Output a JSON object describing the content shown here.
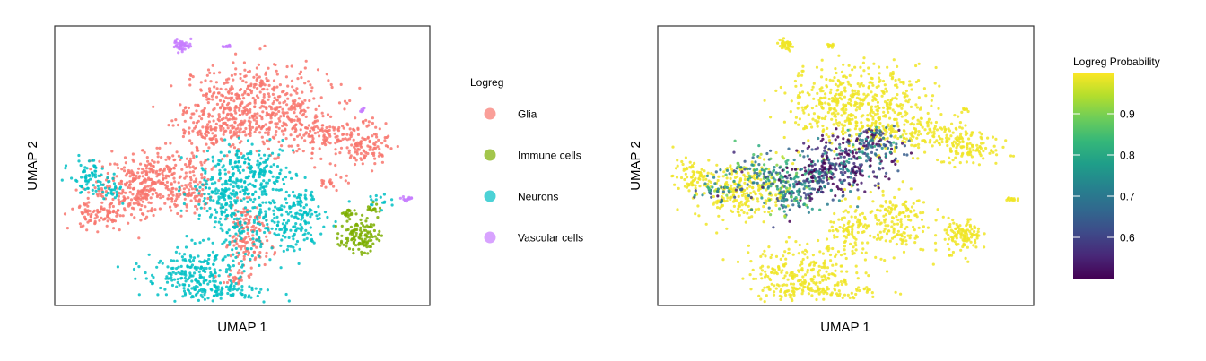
{
  "chart_data": [
    {
      "type": "scatter",
      "xlabel": "UMAP 1",
      "ylabel": "UMAP 2",
      "xlim": [
        0,
        100
      ],
      "ylim": [
        0,
        100
      ],
      "grid": false,
      "axis_ticks": false,
      "legend": {
        "title": "Logreg",
        "placement": "right",
        "entries": [
          {
            "label": "Glia",
            "color": "#F8766D"
          },
          {
            "label": "Immune cells",
            "color": "#7CAE00"
          },
          {
            "label": "Neurons",
            "color": "#00BFC4"
          },
          {
            "label": "Vascular cells",
            "color": "#C77CFF"
          }
        ]
      },
      "clusters": [
        {
          "category": "Glia",
          "cx": 49,
          "cy": 72,
          "sx": 7,
          "sy": 7,
          "n": 260
        },
        {
          "category": "Glia",
          "cx": 58,
          "cy": 71,
          "sx": 8,
          "sy": 7,
          "n": 240
        },
        {
          "category": "Glia",
          "cx": 42,
          "cy": 63,
          "sx": 5,
          "sy": 4,
          "n": 120
        },
        {
          "category": "Glia",
          "cx": 72,
          "cy": 61,
          "sx": 8,
          "sy": 3.5,
          "n": 170
        },
        {
          "category": "Glia",
          "cx": 83,
          "cy": 56,
          "sx": 4,
          "sy": 3,
          "n": 80
        },
        {
          "category": "Glia",
          "cx": 22,
          "cy": 41,
          "sx": 6,
          "sy": 5,
          "n": 230
        },
        {
          "category": "Glia",
          "cx": 30,
          "cy": 48,
          "sx": 6,
          "sy": 4,
          "n": 160
        },
        {
          "category": "Glia",
          "cx": 36,
          "cy": 39,
          "sx": 3.5,
          "sy": 3,
          "n": 70
        },
        {
          "category": "Glia",
          "cx": 12,
          "cy": 32,
          "sx": 4,
          "sy": 2.5,
          "n": 90
        },
        {
          "category": "Glia",
          "cx": 51,
          "cy": 29,
          "sx": 3,
          "sy": 4,
          "n": 90
        },
        {
          "category": "Glia",
          "cx": 52,
          "cy": 20,
          "sx": 3,
          "sy": 3,
          "n": 50
        },
        {
          "category": "Glia",
          "cx": 49,
          "cy": 10,
          "sx": 2,
          "sy": 1.5,
          "n": 25
        },
        {
          "category": "Glia",
          "cx": 74,
          "cy": 45,
          "sx": 2,
          "sy": 2,
          "n": 20
        },
        {
          "category": "Neurons",
          "cx": 52,
          "cy": 47,
          "sx": 6,
          "sy": 5,
          "n": 230
        },
        {
          "category": "Neurons",
          "cx": 44,
          "cy": 39,
          "sx": 4,
          "sy": 4,
          "n": 110
        },
        {
          "category": "Neurons",
          "cx": 62,
          "cy": 30,
          "sx": 5,
          "sy": 6,
          "n": 180
        },
        {
          "category": "Neurons",
          "cx": 49,
          "cy": 28,
          "sx": 3,
          "sy": 4,
          "n": 60
        },
        {
          "category": "Neurons",
          "cx": 38,
          "cy": 12,
          "sx": 7,
          "sy": 5,
          "n": 230
        },
        {
          "category": "Neurons",
          "cx": 44,
          "cy": 5,
          "sx": 8,
          "sy": 1.5,
          "n": 80
        },
        {
          "category": "Neurons",
          "cx": 9,
          "cy": 46,
          "sx": 2.5,
          "sy": 3,
          "n": 70
        },
        {
          "category": "Neurons",
          "cx": 15,
          "cy": 41,
          "sx": 2,
          "sy": 2,
          "n": 25
        },
        {
          "category": "Neurons",
          "cx": 66,
          "cy": 36,
          "sx": 2,
          "sy": 2,
          "n": 25
        },
        {
          "category": "Neurons",
          "cx": 87,
          "cy": 37,
          "sx": 1.5,
          "sy": 1.5,
          "n": 15
        },
        {
          "category": "Immune cells",
          "cx": 81,
          "cy": 25,
          "sx": 2.5,
          "sy": 3,
          "n": 120
        },
        {
          "category": "Immune cells",
          "cx": 78.5,
          "cy": 33,
          "sx": 0.8,
          "sy": 1.2,
          "n": 20
        },
        {
          "category": "Immune cells",
          "cx": 85,
          "cy": 35,
          "sx": 1,
          "sy": 1,
          "n": 15
        },
        {
          "category": "Vascular cells",
          "cx": 34,
          "cy": 93,
          "sx": 1.2,
          "sy": 1,
          "n": 45
        },
        {
          "category": "Vascular cells",
          "cx": 46,
          "cy": 93,
          "sx": 0.5,
          "sy": 0.4,
          "n": 10
        },
        {
          "category": "Vascular cells",
          "cx": 82,
          "cy": 70,
          "sx": 0.4,
          "sy": 0.4,
          "n": 8
        },
        {
          "category": "Vascular cells",
          "cx": 94,
          "cy": 38,
          "sx": 0.8,
          "sy": 0.6,
          "n": 15
        }
      ]
    },
    {
      "type": "scatter",
      "xlabel": "UMAP 1",
      "ylabel": "UMAP 2",
      "xlim": [
        0,
        100
      ],
      "ylim": [
        0,
        100
      ],
      "grid": false,
      "axis_ticks": false,
      "colorbar": {
        "title": "Logreg Probability",
        "placement": "right",
        "range": [
          0.5,
          1.0
        ],
        "ticks": [
          0.6,
          0.7,
          0.8,
          0.9
        ],
        "tick_labels": [
          "0.6",
          "0.7",
          "0.8",
          "0.9"
        ],
        "colormap": "viridis",
        "stops": [
          "#440154",
          "#482878",
          "#3E4A89",
          "#31688E",
          "#26828E",
          "#1F9E89",
          "#35B779",
          "#6DCD59",
          "#B4DE2C",
          "#FDE725"
        ]
      },
      "clusters": [
        {
          "prob": 0.99,
          "cx": 49,
          "cy": 72,
          "sx": 7,
          "sy": 7,
          "n": 260
        },
        {
          "prob": 0.99,
          "cx": 58,
          "cy": 71,
          "sx": 8,
          "sy": 7,
          "n": 240
        },
        {
          "prob": 0.99,
          "cx": 72,
          "cy": 61,
          "sx": 8,
          "sy": 3.5,
          "n": 170
        },
        {
          "prob": 0.99,
          "cx": 83,
          "cy": 56,
          "sx": 4,
          "sy": 3,
          "n": 80
        },
        {
          "prob": 0.99,
          "cx": 22,
          "cy": 41,
          "sx": 6,
          "sy": 5,
          "n": 230
        },
        {
          "prob": 0.99,
          "cx": 9,
          "cy": 46,
          "sx": 2.5,
          "sy": 3,
          "n": 70
        },
        {
          "prob": 0.99,
          "cx": 62,
          "cy": 30,
          "sx": 5,
          "sy": 6,
          "n": 180
        },
        {
          "prob": 0.99,
          "cx": 38,
          "cy": 12,
          "sx": 7,
          "sy": 5,
          "n": 230
        },
        {
          "prob": 0.99,
          "cx": 44,
          "cy": 5,
          "sx": 8,
          "sy": 1.5,
          "n": 80
        },
        {
          "prob": 0.99,
          "cx": 81,
          "cy": 25,
          "sx": 2.5,
          "sy": 3,
          "n": 120
        },
        {
          "prob": 0.99,
          "cx": 51,
          "cy": 25,
          "sx": 3,
          "sy": 5,
          "n": 90
        },
        {
          "prob": 0.99,
          "cx": 34,
          "cy": 93,
          "sx": 1.2,
          "sy": 1,
          "n": 40
        },
        {
          "prob": 0.99,
          "cx": 94,
          "cy": 38,
          "sx": 0.8,
          "sy": 0.6,
          "n": 15
        },
        {
          "prob": 0.99,
          "cx": 82,
          "cy": 70,
          "sx": 0.4,
          "sy": 0.4,
          "n": 8
        },
        {
          "prob": 0.99,
          "cx": 46,
          "cy": 93,
          "sx": 0.5,
          "sy": 0.4,
          "n": 10
        },
        {
          "prob": 0.78,
          "cx": 30,
          "cy": 47,
          "sx": 6,
          "sy": 4,
          "n": 170
        },
        {
          "prob": 0.72,
          "cx": 36,
          "cy": 39,
          "sx": 4,
          "sy": 4,
          "n": 110
        },
        {
          "prob": 0.58,
          "cx": 44,
          "cy": 46,
          "sx": 4,
          "sy": 4,
          "n": 130
        },
        {
          "prob": 0.56,
          "cx": 52,
          "cy": 52,
          "sx": 6,
          "sy": 5,
          "n": 200
        },
        {
          "prob": 0.66,
          "cx": 58,
          "cy": 58,
          "sx": 4,
          "sy": 3,
          "n": 90
        },
        {
          "prob": 0.72,
          "cx": 16,
          "cy": 40,
          "sx": 3,
          "sy": 2,
          "n": 40
        }
      ]
    }
  ]
}
